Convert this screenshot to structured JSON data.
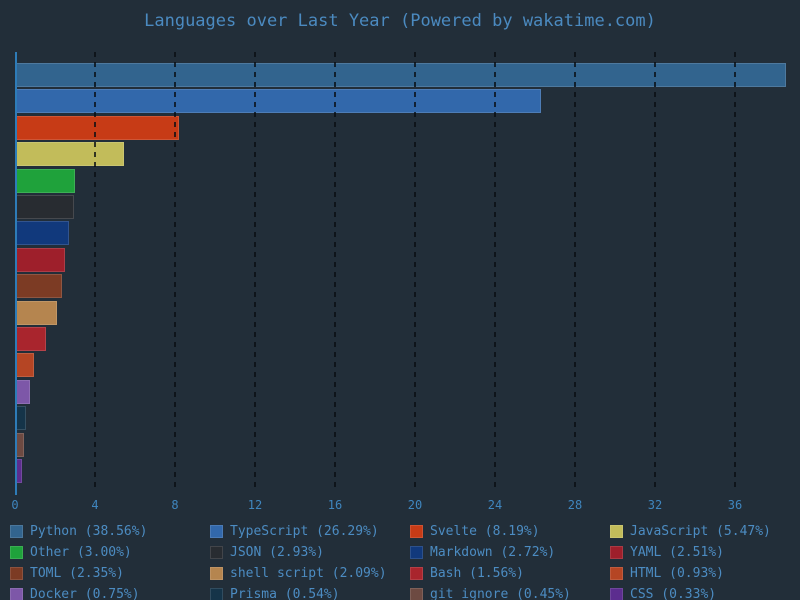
{
  "chart_data": {
    "type": "bar",
    "orientation": "horizontal",
    "title": "Languages over Last Year (Powered by wakatime.com)",
    "categories": [
      "Python",
      "TypeScript",
      "Svelte",
      "JavaScript",
      "Other",
      "JSON",
      "Markdown",
      "YAML",
      "TOML",
      "shell script",
      "Bash",
      "HTML",
      "Docker",
      "Prisma",
      "git ignore",
      "CSS"
    ],
    "values": [
      38.56,
      26.29,
      8.19,
      5.47,
      3.0,
      2.93,
      2.72,
      2.51,
      2.35,
      2.09,
      1.56,
      0.93,
      0.75,
      0.54,
      0.45,
      0.33
    ],
    "unit": "%",
    "colors": [
      "#32648e",
      "#3268ab",
      "#c73b16",
      "#c2bc5a",
      "#1fa23b",
      "#282c31",
      "#11397c",
      "#9e1f2b",
      "#7c3b24",
      "#b5854f",
      "#a9252d",
      "#b54524",
      "#7d57a8",
      "#153449",
      "#6d4a42",
      "#5c2d8f"
    ],
    "xlabel": "",
    "ylabel": "",
    "xlim": [
      0,
      38.65
    ],
    "xticks": [
      0,
      4,
      8,
      12,
      16,
      20,
      24,
      28,
      32,
      36
    ],
    "grid": "vertical-dashed",
    "legend_position": "bottom",
    "legend_columns": 4
  },
  "style": {
    "background": "#222e39",
    "title_color": "#4b8ac0",
    "tick_label_color": "#3f86bf",
    "legend_text_color": "#4c8cc2",
    "axis_line_color": "#2e7cb8",
    "gridline_color": "rgba(8,13,18,0.78)"
  }
}
